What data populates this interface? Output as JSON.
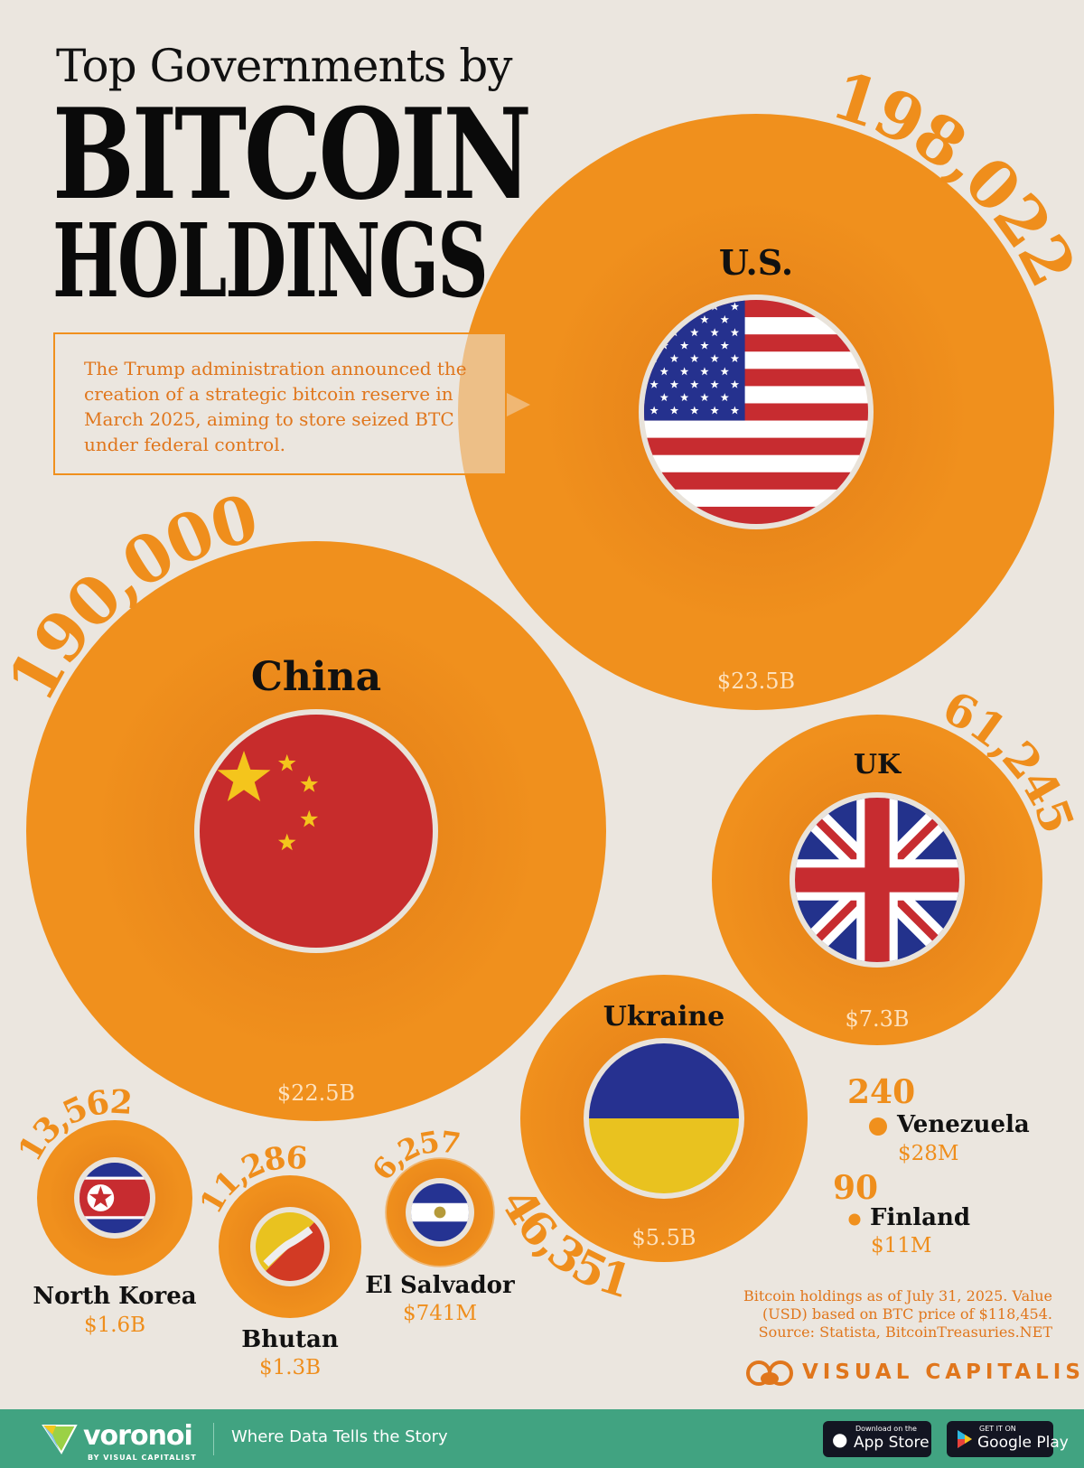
{
  "header": {
    "title_line1": "Top Governments by",
    "title_line2": "BITCOIN",
    "title_line3": "HOLDINGS"
  },
  "callout": {
    "text": "The Trump administration announced the creation of a strategic bitcoin reserve in March 2025, aiming to store seized BTC under federal control."
  },
  "chart_data": {
    "type": "bubble",
    "unit": "BTC",
    "colors": {
      "bubble": "#f0901d",
      "bubble_dark": "#dc7616",
      "number": "#ef8e1c"
    },
    "bubbles": [
      {
        "country": "U.S.",
        "btc": 198022,
        "btc_label": "198,022",
        "value_usd": "$23.5B",
        "flag": "us-flag"
      },
      {
        "country": "China",
        "btc": 190000,
        "btc_label": "190,000",
        "value_usd": "$22.5B",
        "flag": "china-flag"
      },
      {
        "country": "UK",
        "btc": 61245,
        "btc_label": "61,245",
        "value_usd": "$7.3B",
        "flag": "uk-flag"
      },
      {
        "country": "Ukraine",
        "btc": 46351,
        "btc_label": "46,351",
        "value_usd": "$5.5B",
        "flag": "ukraine-flag"
      },
      {
        "country": "North Korea",
        "btc": 13562,
        "btc_label": "13,562",
        "value_usd": "$1.6B",
        "flag": "north-korea-flag"
      },
      {
        "country": "Bhutan",
        "btc": 11286,
        "btc_label": "11,286",
        "value_usd": "$1.3B",
        "flag": "bhutan-flag"
      },
      {
        "country": "El Salvador",
        "btc": 6257,
        "btc_label": "6,257",
        "value_usd": "$741M",
        "flag": "el-salvador-flag"
      },
      {
        "country": "Venezuela",
        "btc": 240,
        "btc_label": "240",
        "value_usd": "$28M"
      },
      {
        "country": "Finland",
        "btc": 90,
        "btc_label": "90",
        "value_usd": "$11M"
      }
    ]
  },
  "footnote": {
    "line1": "Bitcoin holdings as of July 31, 2025. Value",
    "line2": "(USD) based on BTC price of $118,454.",
    "line3": "Source: Statista, BitcoinTreasuries.NET"
  },
  "brand": {
    "name": "VISUAL CAPITALIST"
  },
  "footer": {
    "logo": "voronoi",
    "logo_sub": "BY VISUAL CAPITALIST",
    "tagline": "Where Data Tells the Story",
    "app_store_small": "Download on the",
    "app_store": "App Store",
    "google_play_small": "GET IT ON",
    "google_play": "Google Play",
    "color": "#41a381"
  }
}
